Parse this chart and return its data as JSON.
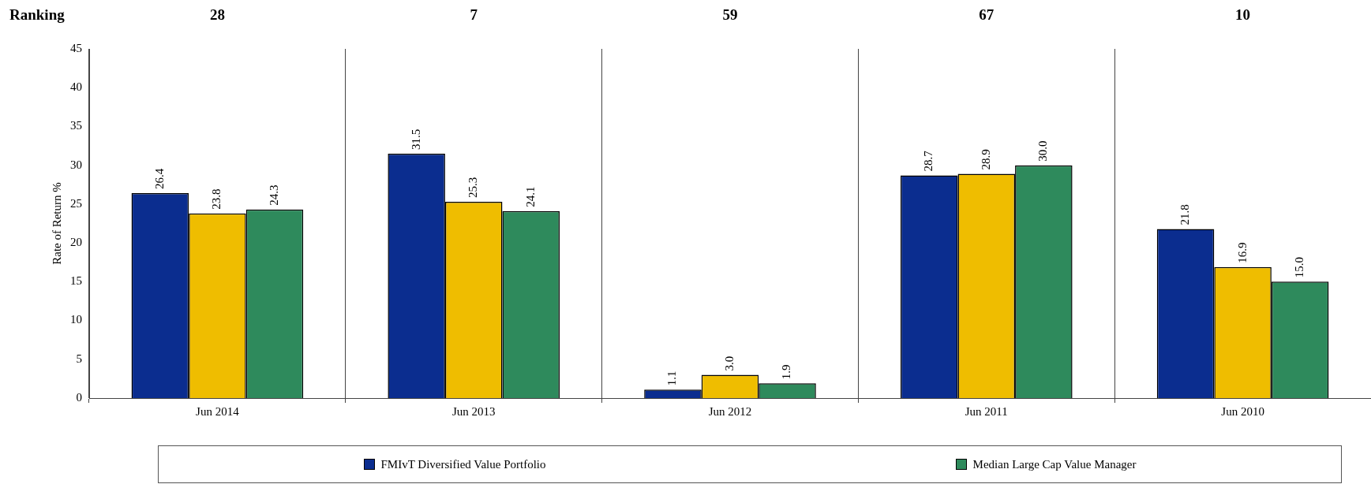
{
  "chart_data": {
    "type": "bar",
    "ylabel": "Rate of Return %",
    "categories": [
      "Jun 2014",
      "Jun 2013",
      "Jun 2012",
      "Jun 2011",
      "Jun 2010"
    ],
    "series": [
      {
        "name": "FMIvT Diversified Value Portfolio",
        "color": "#0b2d8f",
        "values": [
          26.4,
          31.5,
          1.1,
          28.7,
          21.8
        ],
        "value_labels": [
          "26.4",
          "31.5",
          "1.1",
          "28.7",
          "21.8"
        ]
      },
      {
        "color": "#efbd00",
        "values": [
          23.8,
          25.3,
          3.0,
          28.9,
          16.9
        ],
        "value_labels": [
          "23.8",
          "25.3",
          "3.0",
          "28.9",
          "16.9"
        ]
      },
      {
        "name": "Median Large Cap Value Manager",
        "color": "#2e8a5c",
        "values": [
          24.3,
          24.1,
          1.9,
          30.0,
          15.0
        ],
        "value_labels": [
          "24.3",
          "24.1",
          "1.9",
          "30.0",
          "15.0"
        ]
      }
    ],
    "ylim": [
      0,
      45
    ],
    "yticks": [
      0,
      5,
      10,
      15,
      20,
      25,
      30,
      35,
      40,
      45
    ],
    "grid": "x",
    "legend": "bottom",
    "annotations": [
      "Ranking",
      "28",
      "7",
      "59",
      "67",
      "10"
    ]
  }
}
